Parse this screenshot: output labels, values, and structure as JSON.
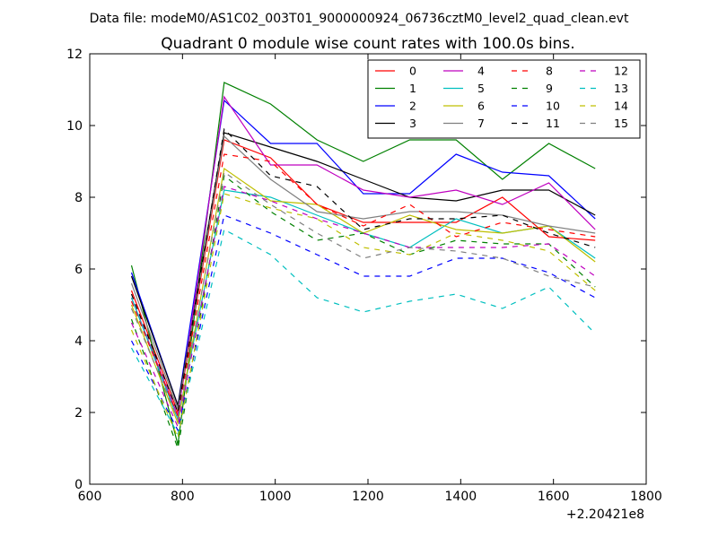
{
  "header": {
    "suptitle": "Data file: modeM0/AS1C02_003T01_9000000924_06736cztM0_level2_quad_clean.evt"
  },
  "chart_data": {
    "type": "line",
    "title": "Quadrant 0 module wise count rates with 100.0s bins.",
    "xlabel": "",
    "ylabel": "",
    "x_offset_label": "+2.20421e8",
    "xlim": [
      600,
      1800
    ],
    "ylim": [
      0,
      12
    ],
    "xticks": [
      600,
      800,
      1000,
      1200,
      1400,
      1600,
      1800
    ],
    "yticks": [
      0,
      2,
      4,
      6,
      8,
      10,
      12
    ],
    "x": [
      690,
      790,
      890,
      990,
      1090,
      1190,
      1290,
      1390,
      1490,
      1590,
      1690
    ],
    "legend": {
      "placement": "top-right",
      "columns": 4
    },
    "series": [
      {
        "name": "0",
        "color": "#ff0000",
        "dash": "solid",
        "values": [
          5.4,
          2.0,
          9.6,
          9.1,
          7.8,
          7.3,
          7.3,
          7.3,
          8.0,
          6.9,
          6.8
        ]
      },
      {
        "name": "1",
        "color": "#008000",
        "dash": "solid",
        "values": [
          6.1,
          1.1,
          11.2,
          10.6,
          9.6,
          9.0,
          9.6,
          9.6,
          8.5,
          9.5,
          8.8
        ]
      },
      {
        "name": "2",
        "color": "#0000ff",
        "dash": "solid",
        "values": [
          5.9,
          2.2,
          10.7,
          9.5,
          9.5,
          8.1,
          8.1,
          9.2,
          8.7,
          8.6,
          7.4
        ]
      },
      {
        "name": "3",
        "color": "#000000",
        "dash": "solid",
        "values": [
          5.8,
          2.2,
          9.8,
          9.4,
          9.0,
          8.5,
          8.0,
          7.9,
          8.2,
          8.2,
          7.5
        ]
      },
      {
        "name": "4",
        "color": "#bf00bf",
        "dash": "solid",
        "values": [
          5.2,
          1.9,
          10.8,
          8.9,
          8.9,
          8.2,
          8.0,
          8.2,
          7.8,
          8.4,
          7.1
        ]
      },
      {
        "name": "5",
        "color": "#00bfbf",
        "dash": "solid",
        "values": [
          5.2,
          1.8,
          8.2,
          8.0,
          7.5,
          7.0,
          6.6,
          7.4,
          7.0,
          7.2,
          6.3
        ]
      },
      {
        "name": "6",
        "color": "#bfbf00",
        "dash": "solid",
        "values": [
          5.0,
          1.7,
          8.8,
          7.9,
          7.8,
          7.0,
          7.5,
          7.1,
          7.0,
          7.2,
          6.2
        ]
      },
      {
        "name": "7",
        "color": "#808080",
        "dash": "solid",
        "values": [
          5.6,
          2.1,
          9.7,
          8.5,
          7.6,
          7.4,
          7.6,
          7.6,
          7.5,
          7.2,
          7.0
        ]
      },
      {
        "name": "8",
        "color": "#ff0000",
        "dash": "dashed",
        "values": [
          5.1,
          1.9,
          9.2,
          9.0,
          7.8,
          7.2,
          7.8,
          6.9,
          7.3,
          7.1,
          6.9
        ]
      },
      {
        "name": "9",
        "color": "#008000",
        "dash": "dashed",
        "values": [
          4.6,
          1.0,
          8.6,
          7.6,
          6.8,
          7.0,
          6.4,
          6.8,
          6.7,
          6.7,
          5.5
        ]
      },
      {
        "name": "10",
        "color": "#0000ff",
        "dash": "dashed",
        "values": [
          4.0,
          1.5,
          7.5,
          7.0,
          6.4,
          5.8,
          5.8,
          6.3,
          6.3,
          5.9,
          5.2
        ]
      },
      {
        "name": "11",
        "color": "#000000",
        "dash": "dashed",
        "values": [
          5.3,
          2.0,
          9.9,
          8.6,
          8.3,
          7.1,
          7.4,
          7.4,
          7.5,
          7.0,
          6.6
        ]
      },
      {
        "name": "12",
        "color": "#bf00bf",
        "dash": "dashed",
        "values": [
          4.5,
          1.6,
          8.3,
          7.9,
          7.4,
          7.0,
          6.6,
          6.6,
          6.6,
          6.7,
          5.8
        ]
      },
      {
        "name": "13",
        "color": "#00bfbf",
        "dash": "dashed",
        "values": [
          3.8,
          1.4,
          7.1,
          6.4,
          5.2,
          4.8,
          5.1,
          5.3,
          4.9,
          5.5,
          4.2
        ]
      },
      {
        "name": "14",
        "color": "#bfbf00",
        "dash": "dashed",
        "values": [
          4.3,
          1.3,
          8.1,
          7.7,
          7.4,
          6.6,
          6.4,
          7.0,
          6.8,
          6.5,
          5.4
        ]
      },
      {
        "name": "15",
        "color": "#808080",
        "dash": "dashed",
        "values": [
          4.9,
          1.8,
          8.7,
          7.8,
          7.0,
          6.3,
          6.6,
          6.5,
          6.3,
          5.8,
          5.5
        ]
      }
    ]
  }
}
